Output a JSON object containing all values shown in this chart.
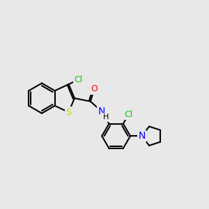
{
  "bg_color": "#e8e8e8",
  "atom_colors": {
    "C": "#000000",
    "N": "#0000ff",
    "O": "#ff0000",
    "S": "#cccc00",
    "Cl": "#00cc00",
    "H": "#000000"
  },
  "font_size": 9,
  "bond_width": 1.5
}
